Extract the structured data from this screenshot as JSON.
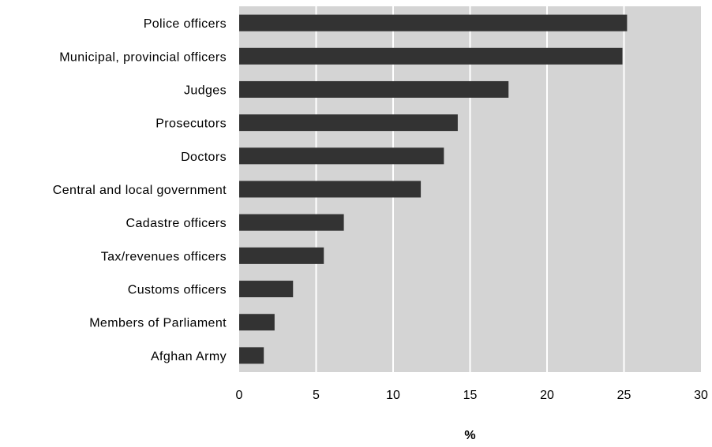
{
  "chart_data": {
    "type": "bar",
    "orientation": "horizontal",
    "categories": [
      "Police officers",
      "Municipal, provincial officers",
      "Judges",
      "Prosecutors",
      "Doctors",
      "Central and local government",
      "Cadastre officers",
      "Tax/revenues officers",
      "Customs officers",
      "Members of Parliament",
      "Afghan Army"
    ],
    "values": [
      25.2,
      24.9,
      17.5,
      14.2,
      13.3,
      11.8,
      6.8,
      5.5,
      3.5,
      2.3,
      1.6
    ],
    "xlabel": "%",
    "ylabel": "",
    "xlim": [
      0,
      30
    ],
    "xticks": [
      "0",
      "5",
      "10",
      "15",
      "20",
      "25",
      "30"
    ],
    "grid": "vertical",
    "colors": {
      "bar": "#333333",
      "plot_background": "#d4d4d4",
      "grid": "#ffffff"
    }
  }
}
